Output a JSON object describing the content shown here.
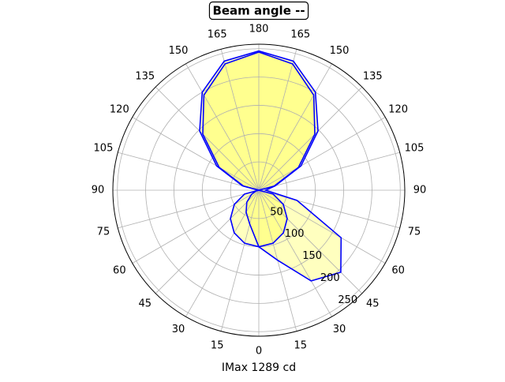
{
  "chart_data": {
    "type": "polar",
    "title": "Beam angle --",
    "xlabel": "IMax 1289 cd",
    "rlim": [
      0,
      258
    ],
    "rticks": [
      50,
      100,
      150,
      200,
      250
    ],
    "grid": true,
    "thetaticks": [
      0,
      15,
      30,
      45,
      60,
      75,
      90,
      105,
      120,
      135,
      150,
      165,
      180,
      {
        "value": 195,
        "label": "165"
      },
      {
        "value": 210,
        "label": "150"
      },
      {
        "value": 225,
        "label": "135"
      },
      {
        "value": 240,
        "label": "120"
      },
      {
        "value": 255,
        "label": "105"
      },
      {
        "value": 270,
        "label": "90"
      },
      {
        "value": 285,
        "label": "75"
      },
      {
        "value": 300,
        "label": "60"
      },
      {
        "value": 315,
        "label": "45"
      },
      {
        "value": 330,
        "label": "30"
      },
      {
        "value": 345,
        "label": "15"
      }
    ],
    "series": [
      {
        "color": "#0000ff",
        "fill": "#ffff00",
        "theta": [
          0,
          15,
          30,
          45,
          60,
          75,
          90,
          105,
          120,
          135,
          150,
          165,
          180,
          195,
          210,
          225,
          240,
          255,
          270,
          285,
          300,
          315,
          330,
          345
        ],
        "r": [
          100,
          97,
          87,
          71,
          50,
          26,
          0,
          28,
          81,
          140,
          194,
          231,
          244,
          231,
          194,
          140,
          81,
          28,
          0,
          26,
          50,
          71,
          87,
          97
        ]
      },
      {
        "color": "#0000ff",
        "fill": "#ffff00",
        "theta": [
          0,
          15,
          30,
          45,
          60,
          75,
          90,
          105,
          120,
          135,
          150,
          165,
          180,
          195,
          210,
          225,
          240,
          255,
          270,
          285,
          300,
          315,
          330,
          345
        ],
        "r": [
          100,
          128,
          185,
          205,
          168,
          70,
          12,
          30,
          86,
          148,
          200,
          236,
          246,
          236,
          200,
          148,
          86,
          30,
          0,
          5,
          15,
          30,
          45,
          62
        ]
      }
    ]
  }
}
